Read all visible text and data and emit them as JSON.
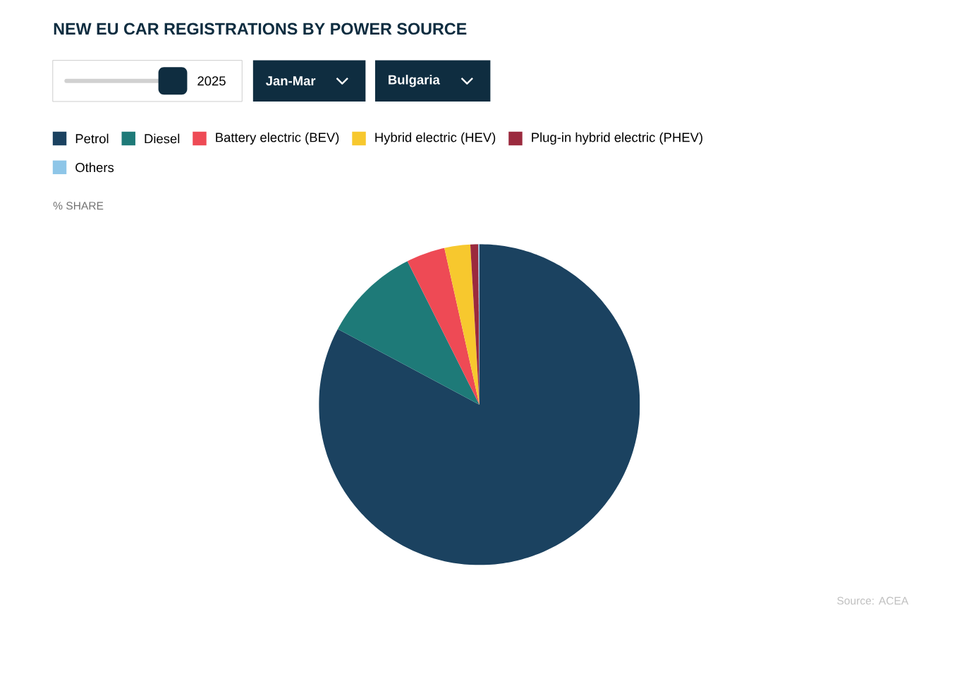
{
  "chart_data": {
    "type": "pie",
    "title": "NEW EU CAR REGISTRATIONS BY POWER SOURCE",
    "categories": [
      "Petrol",
      "Diesel",
      "Battery electric (BEV)",
      "Hybrid electric (HEV)",
      "Plug-in hybrid electric (PHEV)",
      "Others"
    ],
    "values": [
      82.8,
      9.8,
      3.9,
      2.6,
      0.8,
      0.1
    ],
    "colors": [
      "#1b4260",
      "#1e7a78",
      "#ee4a55",
      "#f7c82e",
      "#9b2a3e",
      "#8ec6e8"
    ],
    "legend": "top",
    "annotations": [
      "2025",
      "Jan-Mar",
      "Bulgaria",
      "% SHARE",
      "Source: ACEA"
    ]
  }
}
